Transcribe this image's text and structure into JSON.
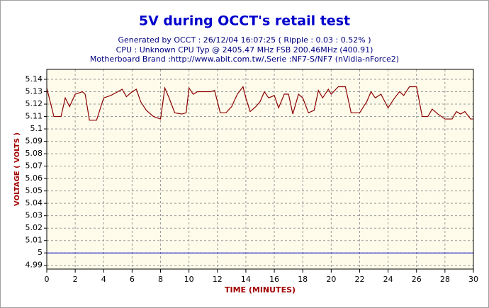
{
  "chart_data": {
    "type": "line",
    "title": "5V during OCCT's retail test",
    "subtitles": [
      "Generated by OCCT : 26/12/04 16:07:25 ( Ripple : 0.03 : 0.52% )",
      "CPU : Unknown CPU Typ @ 2405.47 MHz FSB 200.46MHz (400.91)",
      "Motherboard Brand :http://www.abit.com.tw/,Serie :NF7-S/NF7 (nVidia-nForce2)"
    ],
    "x_label": "TIME (MINUTES)",
    "y_label": "VOLTAGE ( VOLTS )",
    "x": [
      0,
      0.5,
      1.0,
      1.3,
      1.6,
      2.0,
      2.5,
      2.7,
      3.0,
      3.5,
      4.0,
      4.5,
      5.0,
      5.3,
      5.6,
      6.0,
      6.3,
      6.6,
      7.0,
      7.5,
      8.0,
      8.3,
      8.6,
      9.0,
      9.5,
      9.8,
      10.0,
      10.3,
      10.6,
      11.5,
      11.8,
      12.2,
      12.6,
      13.0,
      13.4,
      13.8,
      14.0,
      14.3,
      14.7,
      15.0,
      15.3,
      15.6,
      16.0,
      16.3,
      16.7,
      17.0,
      17.3,
      17.7,
      18.0,
      18.4,
      18.8,
      19.1,
      19.4,
      19.8,
      20.0,
      20.5,
      21.0,
      21.4,
      22.0,
      22.5,
      22.8,
      23.1,
      23.5,
      24.0,
      24.4,
      24.8,
      25.1,
      25.5,
      26.0,
      26.4,
      26.8,
      27.1,
      27.5,
      28.0,
      28.5,
      28.8,
      29.1,
      29.4,
      29.8,
      30.0
    ],
    "series": [
      {
        "color": "#8b0000",
        "values": [
          5.133,
          5.11,
          5.11,
          5.125,
          5.118,
          5.128,
          5.13,
          5.128,
          5.107,
          5.107,
          5.125,
          5.127,
          5.13,
          5.132,
          5.126,
          5.13,
          5.132,
          5.122,
          5.115,
          5.11,
          5.108,
          5.133,
          5.125,
          5.113,
          5.112,
          5.113,
          5.133,
          5.128,
          5.13,
          5.13,
          5.131,
          5.113,
          5.113,
          5.118,
          5.128,
          5.134,
          5.125,
          5.114,
          5.118,
          5.122,
          5.13,
          5.125,
          5.127,
          5.117,
          5.128,
          5.128,
          5.112,
          5.128,
          5.125,
          5.113,
          5.115,
          5.131,
          5.125,
          5.132,
          5.128,
          5.134,
          5.134,
          5.113,
          5.113,
          5.122,
          5.13,
          5.125,
          5.128,
          5.117,
          5.124,
          5.13,
          5.127,
          5.134,
          5.134,
          5.11,
          5.11,
          5.116,
          5.112,
          5.108,
          5.108,
          5.114,
          5.112,
          5.114,
          5.108,
          5.108
        ]
      }
    ],
    "reference_line": {
      "value": 5,
      "color": "#0000cc"
    },
    "xlim": [
      0,
      30
    ],
    "xticks": [
      0,
      2,
      4,
      6,
      8,
      10,
      12,
      14,
      16,
      18,
      20,
      22,
      24,
      26,
      28,
      30
    ],
    "ylim": [
      4.987,
      5.148
    ],
    "yticks": [
      4.99,
      5,
      5.01,
      5.02,
      5.03,
      5.04,
      5.05,
      5.06,
      5.07,
      5.08,
      5.09,
      5.1,
      5.11,
      5.12,
      5.13,
      5.14
    ],
    "grid": true
  }
}
